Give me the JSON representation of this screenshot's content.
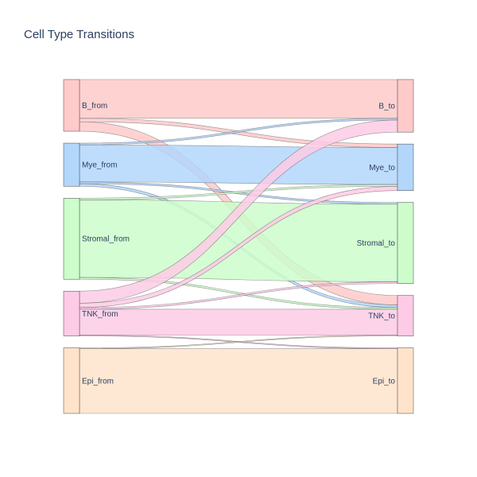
{
  "chart_data": {
    "type": "sankey",
    "title": "Cell Type Transitions",
    "nodes": [
      {
        "id": "B_from",
        "label": "B_from",
        "side": "source",
        "color": "#ffcaca"
      },
      {
        "id": "Mye_from",
        "label": "Mye_from",
        "side": "source",
        "color": "#b3d6fb"
      },
      {
        "id": "Stromal_from",
        "label": "Stromal_from",
        "side": "source",
        "color": "#ccfdcb"
      },
      {
        "id": "TNK_from",
        "label": "TNK_from",
        "side": "source",
        "color": "#fdcbe5"
      },
      {
        "id": "Epi_from",
        "label": "Epi_from",
        "side": "source",
        "color": "#ffe4cb"
      },
      {
        "id": "B_to",
        "label": "B_to",
        "side": "target",
        "color": "#ffcaca"
      },
      {
        "id": "Mye_to",
        "label": "Mye_to",
        "side": "target",
        "color": "#b3d6fb"
      },
      {
        "id": "Stromal_to",
        "label": "Stromal_to",
        "side": "target",
        "color": "#ccfdcb"
      },
      {
        "id": "TNK_to",
        "label": "TNK_to",
        "side": "target",
        "color": "#fdcbe5"
      },
      {
        "id": "Epi_to",
        "label": "Epi_to",
        "side": "target",
        "color": "#ffe4cb"
      }
    ],
    "links": [
      {
        "source": "B_from",
        "target": "B_to",
        "value": 45,
        "color": "#ffcaca"
      },
      {
        "source": "B_from",
        "target": "Mye_to",
        "value": 4,
        "color": "#ffcaca"
      },
      {
        "source": "B_from",
        "target": "TNK_to",
        "value": 11,
        "color": "#ffcaca"
      },
      {
        "source": "Mye_from",
        "target": "B_to",
        "value": 2,
        "color": "#b3d6fb"
      },
      {
        "source": "Mye_from",
        "target": "Mye_to",
        "value": 43,
        "color": "#b3d6fb"
      },
      {
        "source": "Mye_from",
        "target": "Stromal_to",
        "value": 2,
        "color": "#b3d6fb"
      },
      {
        "source": "Mye_from",
        "target": "TNK_to",
        "value": 3,
        "color": "#b3d6fb"
      },
      {
        "source": "Stromal_from",
        "target": "Mye_to",
        "value": 2,
        "color": "#ccfdcb"
      },
      {
        "source": "Stromal_from",
        "target": "Stromal_to",
        "value": 90,
        "color": "#ccfdcb"
      },
      {
        "source": "Stromal_from",
        "target": "TNK_to",
        "value": 2,
        "color": "#ccfdcb"
      },
      {
        "source": "TNK_from",
        "target": "B_to",
        "value": 14,
        "color": "#fdcbe5"
      },
      {
        "source": "TNK_from",
        "target": "Mye_to",
        "value": 5,
        "color": "#fdcbe5"
      },
      {
        "source": "TNK_from",
        "target": "Stromal_to",
        "value": 2,
        "color": "#fdcbe5"
      },
      {
        "source": "TNK_from",
        "target": "TNK_to",
        "value": 30,
        "color": "#fdcbe5"
      },
      {
        "source": "TNK_from",
        "target": "Epi_to",
        "value": 1,
        "color": "#fdcbe5"
      },
      {
        "source": "Epi_from",
        "target": "TNK_to",
        "value": 1,
        "color": "#ffe4cb"
      },
      {
        "source": "Epi_from",
        "target": "Epi_to",
        "value": 75,
        "color": "#ffe4cb"
      }
    ]
  }
}
